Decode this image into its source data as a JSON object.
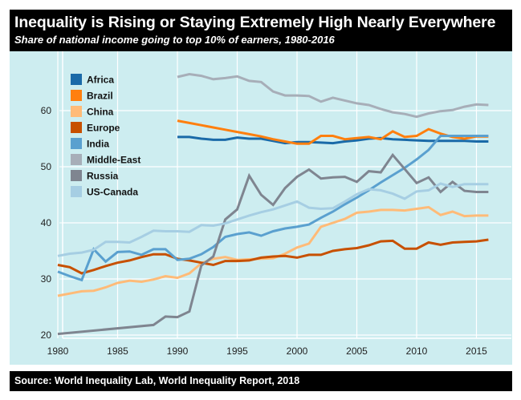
{
  "header": {
    "title": "Inequality is Rising or Staying Extremely High Nearly Everywhere",
    "subtitle": "Share of national income going to top 10% of earners, 1980-2016"
  },
  "footer": {
    "source": "Source: World Inequality Lab, World Inequality Report, 2018"
  },
  "chart_data": {
    "type": "line",
    "title": "Inequality is Rising or Staying Extremely High Nearly Everywhere",
    "subtitle": "Share of national income going to top 10% of earners, 1980-2016",
    "xlabel": "",
    "ylabel": "",
    "xlim": [
      1978,
      2018
    ],
    "ylim": [
      19,
      69
    ],
    "x_ticks": [
      1980,
      1985,
      1990,
      1995,
      2000,
      2005,
      2010,
      2015
    ],
    "y_ticks": [
      20,
      30,
      40,
      50,
      60
    ],
    "grid": true,
    "legend_position": "top-left",
    "background": "#cdedf0",
    "series": [
      {
        "name": "Africa",
        "color": "#1a6aa8",
        "x": [
          1990,
          1991,
          1992,
          1993,
          1994,
          1995,
          1996,
          1997,
          1998,
          1999,
          2000,
          2001,
          2002,
          2003,
          2004,
          2005,
          2006,
          2007,
          2008,
          2009,
          2010,
          2011,
          2012,
          2013,
          2014,
          2015,
          2016
        ],
        "values": [
          55.3,
          55.3,
          55.0,
          54.8,
          54.8,
          55.2,
          55.0,
          55.0,
          54.6,
          54.2,
          54.4,
          54.4,
          54.3,
          54.2,
          54.5,
          54.7,
          55.0,
          55.1,
          54.9,
          54.8,
          54.7,
          54.6,
          54.6,
          54.6,
          54.6,
          54.5,
          54.5
        ]
      },
      {
        "name": "Brazil",
        "color": "#ff7f0e",
        "x": [
          1990,
          1991,
          1992,
          1993,
          1994,
          1995,
          1996,
          1997,
          1998,
          1999,
          2000,
          2001,
          2002,
          2003,
          2004,
          2005,
          2006,
          2007,
          2008,
          2009,
          2010,
          2011,
          2012,
          2013,
          2014,
          2015,
          2016
        ],
        "values": [
          58.2,
          57.8,
          57.4,
          57.0,
          56.6,
          56.2,
          55.8,
          55.4,
          54.9,
          54.5,
          54.1,
          54.1,
          55.5,
          55.5,
          54.9,
          55.1,
          55.3,
          54.9,
          56.3,
          55.3,
          55.5,
          56.7,
          55.9,
          55.3,
          55.0,
          55.4,
          55.4
        ]
      },
      {
        "name": "China",
        "color": "#ffbb78",
        "x": [
          1980,
          1981,
          1982,
          1983,
          1984,
          1985,
          1986,
          1987,
          1988,
          1989,
          1990,
          1991,
          1992,
          1993,
          1994,
          1995,
          1996,
          1997,
          1998,
          1999,
          2000,
          2001,
          2002,
          2003,
          2004,
          2005,
          2006,
          2007,
          2008,
          2009,
          2010,
          2011,
          2012,
          2013,
          2014,
          2015,
          2016
        ],
        "values": [
          27.0,
          27.4,
          27.8,
          27.9,
          28.5,
          29.3,
          29.7,
          29.5,
          29.9,
          30.5,
          30.2,
          31.0,
          32.8,
          33.6,
          33.9,
          33.4,
          33.5,
          33.6,
          33.7,
          34.5,
          35.6,
          36.3,
          39.3,
          40.0,
          40.7,
          41.8,
          42.0,
          42.3,
          42.3,
          42.2,
          42.5,
          42.8,
          41.4,
          42.0,
          41.2,
          41.3,
          41.3
        ]
      },
      {
        "name": "Europe",
        "color": "#c75000",
        "x": [
          1980,
          1981,
          1982,
          1983,
          1984,
          1985,
          1986,
          1987,
          1988,
          1989,
          1990,
          1991,
          1992,
          1993,
          1994,
          1995,
          1996,
          1997,
          1998,
          1999,
          2000,
          2001,
          2002,
          2003,
          2004,
          2005,
          2006,
          2007,
          2008,
          2009,
          2010,
          2011,
          2012,
          2013,
          2014,
          2015,
          2016
        ],
        "values": [
          32.5,
          32.1,
          31.0,
          31.6,
          32.3,
          32.9,
          33.3,
          33.9,
          34.4,
          34.4,
          33.6,
          33.3,
          32.9,
          32.5,
          33.2,
          33.2,
          33.3,
          33.8,
          34.0,
          34.1,
          33.8,
          34.3,
          34.3,
          35.0,
          35.3,
          35.5,
          36.0,
          36.7,
          36.8,
          35.4,
          35.4,
          36.5,
          36.1,
          36.5,
          36.6,
          36.7,
          37.0
        ]
      },
      {
        "name": "India",
        "color": "#5aa0cf",
        "x": [
          1980,
          1981,
          1982,
          1983,
          1984,
          1985,
          1986,
          1987,
          1988,
          1989,
          1990,
          1991,
          1992,
          1993,
          1994,
          1995,
          1996,
          1997,
          1998,
          1999,
          2000,
          2001,
          2002,
          2003,
          2004,
          2005,
          2006,
          2007,
          2008,
          2009,
          2010,
          2011,
          2012,
          2013,
          2014,
          2015,
          2016
        ],
        "values": [
          31.3,
          30.5,
          29.8,
          35.3,
          33.1,
          34.8,
          34.9,
          34.3,
          35.3,
          35.3,
          33.4,
          33.6,
          34.4,
          35.7,
          37.5,
          38.0,
          38.3,
          37.7,
          38.5,
          39.0,
          39.3,
          39.7,
          40.9,
          42.0,
          43.3,
          44.5,
          45.8,
          47.2,
          48.5,
          49.8,
          51.3,
          53.0,
          55.5,
          55.5,
          55.5,
          55.5,
          55.5
        ]
      },
      {
        "name": "Middle-East",
        "color": "#a7aeb8",
        "x": [
          1990,
          1991,
          1992,
          1993,
          1994,
          1995,
          1996,
          1997,
          1998,
          1999,
          2000,
          2001,
          2002,
          2003,
          2004,
          2005,
          2006,
          2007,
          2008,
          2009,
          2010,
          2011,
          2012,
          2013,
          2014,
          2015,
          2016
        ],
        "values": [
          66.0,
          66.5,
          66.2,
          65.6,
          65.8,
          66.1,
          65.3,
          65.1,
          63.4,
          62.7,
          62.7,
          62.6,
          61.6,
          62.3,
          61.8,
          61.3,
          61.0,
          60.3,
          59.7,
          59.4,
          58.9,
          59.5,
          59.9,
          60.1,
          60.7,
          61.1,
          61.0
        ]
      },
      {
        "name": "Russia",
        "color": "#7f8590",
        "x": [
          1980,
          1988,
          1989,
          1990,
          1991,
          1992,
          1993,
          1994,
          1995,
          1996,
          1997,
          1998,
          1999,
          2000,
          2001,
          2002,
          2003,
          2004,
          2005,
          2006,
          2007,
          2008,
          2009,
          2010,
          2011,
          2012,
          2013,
          2014,
          2015,
          2016
        ],
        "values": [
          20.2,
          21.8,
          23.3,
          23.2,
          24.2,
          32.4,
          34.0,
          40.6,
          42.4,
          48.4,
          45.0,
          43.2,
          46.2,
          48.2,
          49.5,
          47.9,
          48.1,
          48.2,
          47.3,
          49.2,
          49.0,
          52.1,
          49.6,
          47.1,
          48.1,
          45.5,
          47.3,
          45.7,
          45.5,
          45.5
        ]
      },
      {
        "name": "US-Canada",
        "color": "#a6cee3",
        "x": [
          1980,
          1981,
          1982,
          1983,
          1984,
          1985,
          1986,
          1987,
          1988,
          1989,
          1990,
          1991,
          1992,
          1993,
          1994,
          1995,
          1996,
          1997,
          1998,
          1999,
          2000,
          2001,
          2002,
          2003,
          2004,
          2005,
          2006,
          2007,
          2008,
          2009,
          2010,
          2011,
          2012,
          2013,
          2014,
          2015,
          2016
        ],
        "values": [
          34.1,
          34.5,
          34.7,
          35.2,
          36.6,
          36.6,
          36.5,
          37.5,
          38.6,
          38.5,
          38.5,
          38.4,
          39.6,
          39.5,
          39.9,
          40.6,
          41.3,
          41.9,
          42.4,
          43.1,
          43.8,
          42.7,
          42.5,
          42.6,
          43.8,
          45.1,
          46.0,
          45.8,
          45.2,
          44.3,
          45.6,
          45.8,
          47.0,
          46.4,
          46.9,
          46.9,
          46.9
        ]
      }
    ]
  }
}
